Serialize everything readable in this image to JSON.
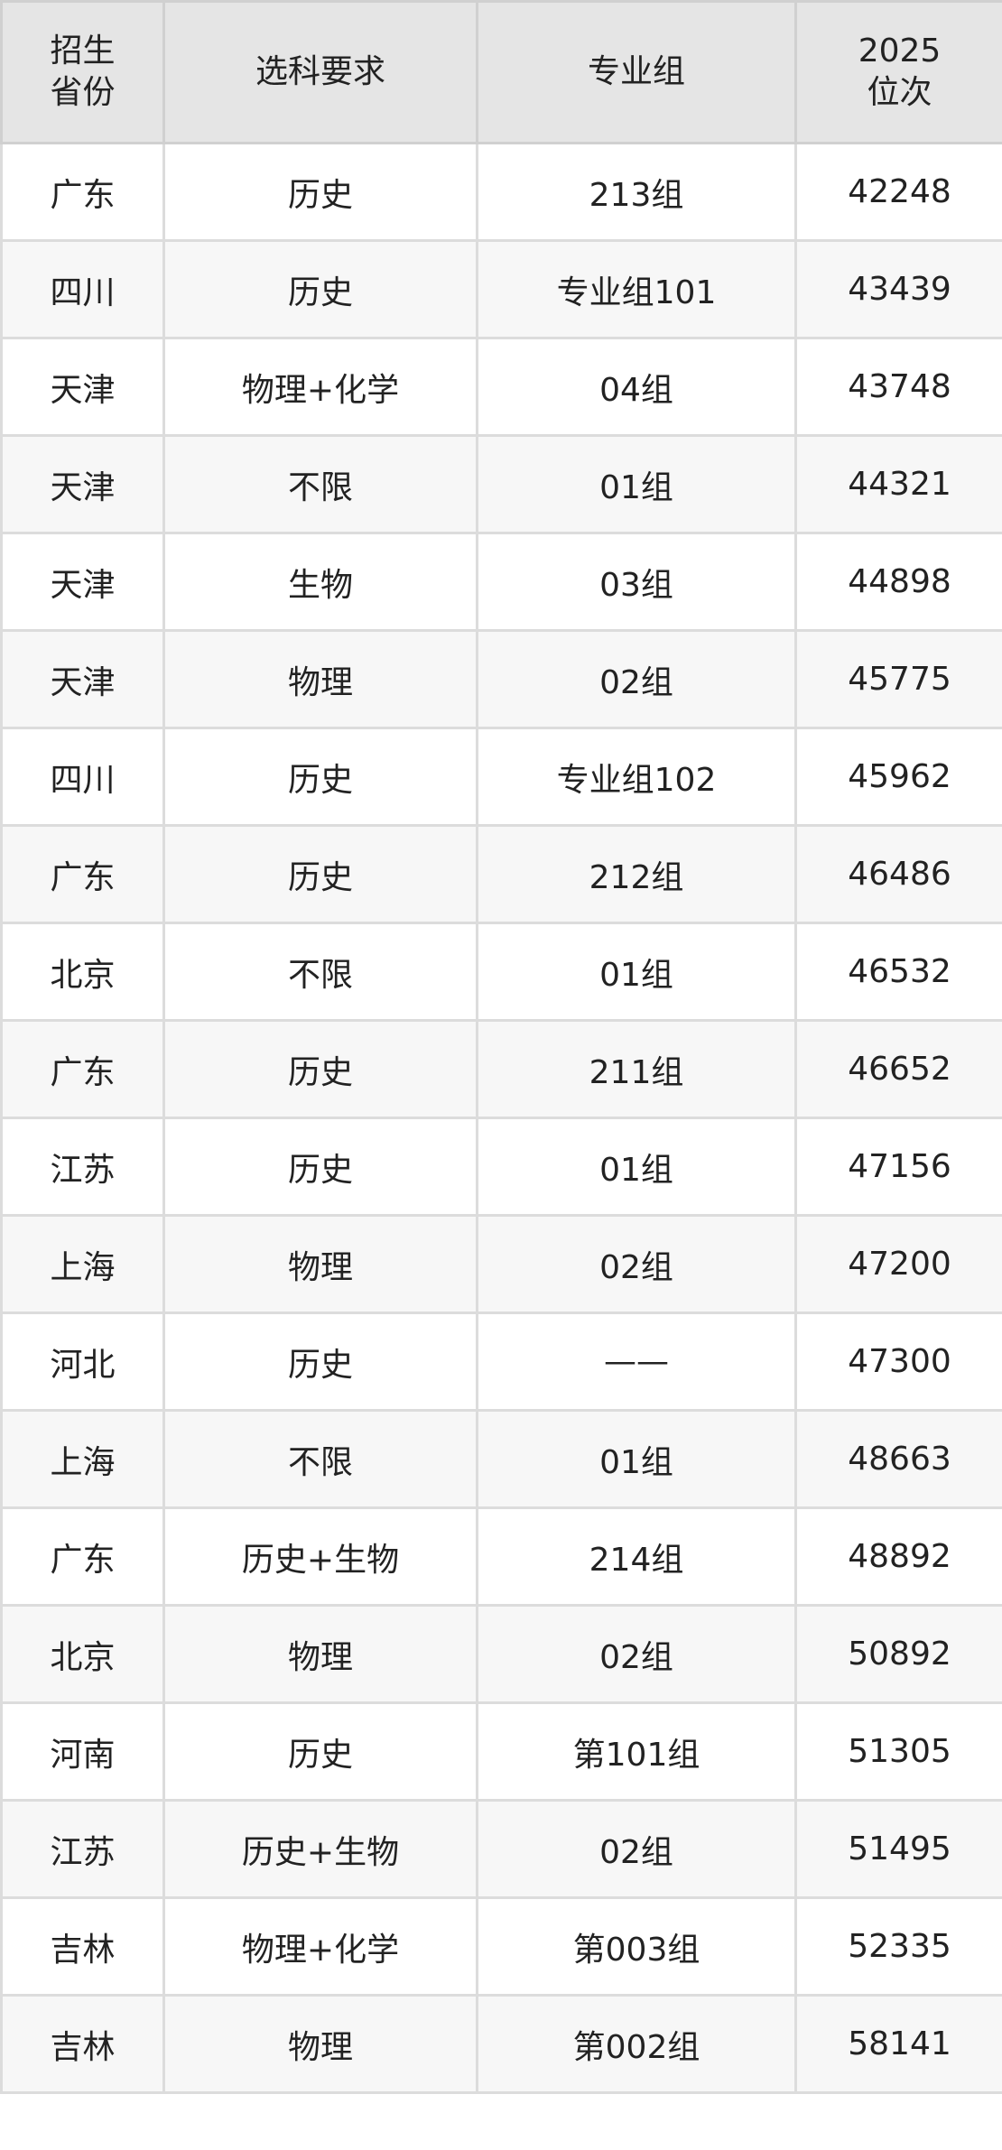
{
  "header": {
    "province": [
      "招生",
      "省份"
    ],
    "subject": "选科要求",
    "group": "专业组",
    "rank": [
      "2025",
      "位次"
    ]
  },
  "rows": [
    [
      "广东",
      "历史",
      "213组",
      "42248"
    ],
    [
      "四川",
      "历史",
      "专业组101",
      "43439"
    ],
    [
      "天津",
      "物理+化学",
      "04组",
      "43748"
    ],
    [
      "天津",
      "不限",
      "01组",
      "44321"
    ],
    [
      "天津",
      "生物",
      "03组",
      "44898"
    ],
    [
      "天津",
      "物理",
      "02组",
      "45775"
    ],
    [
      "四川",
      "历史",
      "专业组102",
      "45962"
    ],
    [
      "广东",
      "历史",
      "212组",
      "46486"
    ],
    [
      "北京",
      "不限",
      "01组",
      "46532"
    ],
    [
      "广东",
      "历史",
      "211组",
      "46652"
    ],
    [
      "江苏",
      "历史",
      "01组",
      "47156"
    ],
    [
      "上海",
      "物理",
      "02组",
      "47200"
    ],
    [
      "河北",
      "历史",
      "——",
      "47300"
    ],
    [
      "上海",
      "不限",
      "01组",
      "48663"
    ],
    [
      "广东",
      "历史+生物",
      "214组",
      "48892"
    ],
    [
      "北京",
      "物理",
      "02组",
      "50892"
    ],
    [
      "河南",
      "历史",
      "第101组",
      "51305"
    ],
    [
      "江苏",
      "历史+生物",
      "02组",
      "51495"
    ],
    [
      "吉林",
      "物理+化学",
      "第003组",
      "52335"
    ],
    [
      "吉林",
      "物理",
      "第002组",
      "58141"
    ]
  ]
}
